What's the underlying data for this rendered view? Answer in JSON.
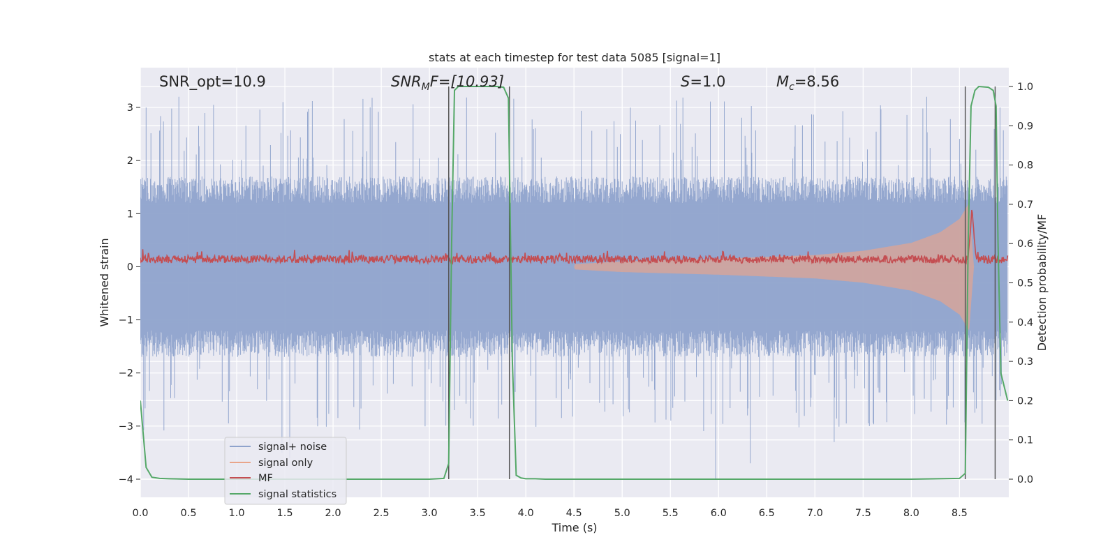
{
  "chart_data": {
    "type": "line",
    "title": "stats at each timestep for test data 5085 [signal=1]",
    "xlabel": "Time (s)",
    "ylabel": "Whitened strain",
    "y2label": "Detection probability/MF",
    "xlim": [
      0.0,
      9.0
    ],
    "ylim": [
      -4.35,
      3.75
    ],
    "y2lim": [
      -0.048,
      1.048
    ],
    "x_ticks": [
      "0.0",
      "0.5",
      "1.0",
      "1.5",
      "2.0",
      "2.5",
      "3.0",
      "3.5",
      "4.0",
      "4.5",
      "5.0",
      "5.5",
      "6.0",
      "6.5",
      "7.0",
      "7.5",
      "8.0",
      "8.5"
    ],
    "y_ticks": [
      "3",
      "2",
      "1",
      "0",
      "−1",
      "−2",
      "−3",
      "−4"
    ],
    "y2_ticks": [
      "1.0",
      "0.9",
      "0.8",
      "0.7",
      "0.6",
      "0.5",
      "0.4",
      "0.3",
      "0.2",
      "0.1",
      "0.0"
    ],
    "grid": true,
    "legend_position": "lower-left",
    "annotations": {
      "snr_opt": "SNR_opt=10.9",
      "snr_mf_main": "SNR",
      "snr_mf_sub": "M",
      "snr_mf_rest": "F=[10.93]",
      "s_main": "S",
      "s_rest": "=1.0",
      "mc_main": "M",
      "mc_sub": "c",
      "mc_rest": "=8.56"
    },
    "series": [
      {
        "name": "signal+ noise",
        "color": "#8fa3cc",
        "description": "whitened strain, approx. ±1.5 noise band with spikes to about ±3.2"
      },
      {
        "name": "signal only",
        "color": "#e9a58a",
        "envelope": {
          "t": [
            4.5,
            5.0,
            6.0,
            7.0,
            7.5,
            8.0,
            8.3,
            8.5,
            8.6,
            8.65
          ],
          "amplitude": [
            0.05,
            0.1,
            0.15,
            0.22,
            0.3,
            0.45,
            0.65,
            0.9,
            1.2,
            0.0
          ]
        }
      },
      {
        "name": "MF",
        "color": "#c44e52",
        "axis": "right",
        "baseline": 0.56,
        "peak": {
          "t": 8.63,
          "value": 0.7
        }
      },
      {
        "name": "signal statistics",
        "color": "#55a868",
        "axis": "right",
        "t": [
          0.0,
          0.06,
          0.12,
          0.2,
          0.3,
          0.5,
          1.0,
          1.5,
          2.0,
          2.5,
          3.0,
          3.15,
          3.2,
          3.23,
          3.26,
          3.3,
          3.4,
          3.5,
          3.6,
          3.7,
          3.77,
          3.82,
          3.86,
          3.9,
          3.95,
          4.0,
          4.1,
          4.2,
          4.3,
          5.0,
          6.0,
          7.0,
          8.0,
          8.5,
          8.56,
          8.59,
          8.62,
          8.66,
          8.7,
          8.8,
          8.85,
          8.88,
          8.9,
          8.93,
          9.0
        ],
        "p": [
          0.2,
          0.03,
          0.005,
          0.002,
          0.001,
          0.0,
          0.0,
          0.0,
          0.0,
          0.0,
          0.0,
          0.002,
          0.04,
          0.6,
          0.99,
          1.0,
          1.0,
          1.0,
          1.0,
          1.0,
          0.998,
          0.97,
          0.3,
          0.01,
          0.003,
          0.001,
          0.001,
          0.0,
          0.0,
          0.0,
          0.0,
          0.0,
          0.0,
          0.002,
          0.015,
          0.6,
          0.95,
          0.99,
          1.0,
          0.998,
          0.99,
          0.95,
          0.6,
          0.27,
          0.2
        ]
      }
    ],
    "vertical_lines": [
      3.2,
      3.83,
      8.56,
      8.87
    ]
  }
}
